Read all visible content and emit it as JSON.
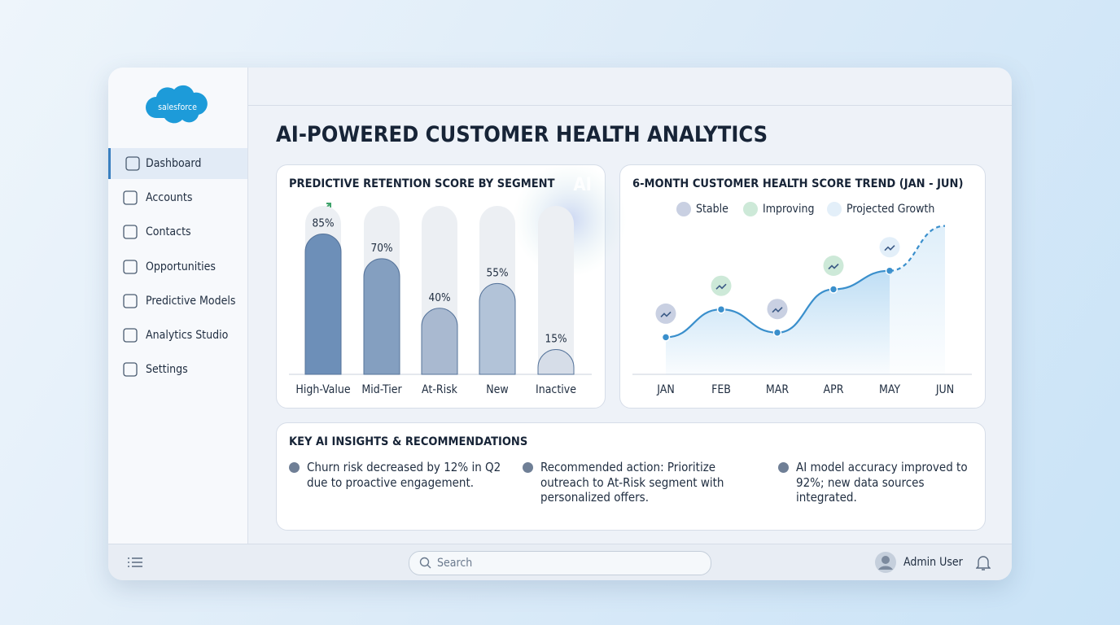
{
  "sidebar": {
    "logo": "salesforce",
    "nav": [
      "Dashboard",
      "Accounts",
      "Contacts",
      "Opportunities",
      "Predictive Models",
      "Analytics Studio",
      "Settings"
    ]
  },
  "header": {
    "title": "AI-POWERED CUSTOMER HEALTH ANALYTICS"
  },
  "retention_chart": {
    "type": "bar",
    "title": "PREDICTIVE RETENTION SCORE BY SEGMENT",
    "badge": "AI",
    "categories": [
      "High-Value",
      "Mid-Tier",
      "At-Risk",
      "New",
      "Inactive"
    ],
    "values": [
      85,
      70,
      40,
      55,
      15
    ],
    "value_labels": [
      "85%",
      "70%",
      "40%",
      "55%",
      "15%"
    ],
    "colors": [
      "#6d8fb8",
      "#849fc0",
      "#a9b9d0",
      "#b2c3d8",
      "#d6dde8"
    ],
    "ylim": [
      0,
      100
    ]
  },
  "trend_chart": {
    "type": "line",
    "title": "6-MONTH CUSTOMER HEALTH SCORE TREND (JAN - JUN)",
    "categories": [
      "JAN",
      "FEB",
      "MAR",
      "APR",
      "MAY",
      "JUN"
    ],
    "legend": [
      "Stable",
      "Improving",
      "Projected Growth"
    ],
    "series": [
      {
        "values": [
          24,
          42,
          27,
          55,
          67,
          null
        ],
        "color": "#3a8fcc"
      },
      {
        "name": "Projected Growth",
        "values": [
          null,
          null,
          null,
          null,
          67,
          96
        ],
        "color": "#3a8fcc",
        "dashed": true
      }
    ],
    "ylim": [
      0,
      100
    ]
  },
  "insights": {
    "title": "KEY AI INSIGHTS & RECOMMENDATIONS",
    "items": [
      "Churn risk decreased by 12% in Q2 due to proactive engagement.",
      "Recommended action: Prioritize outreach to At-Risk segment with personalized offers.",
      "AI model accuracy improved to 92%; new data sources integrated."
    ]
  },
  "footer": {
    "search_placeholder": "Search",
    "user": "Admin User"
  }
}
